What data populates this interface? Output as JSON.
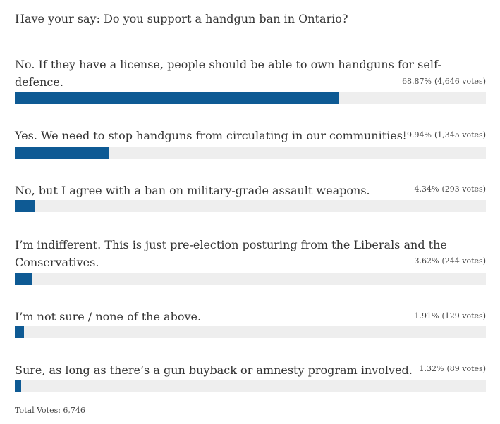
{
  "poll": {
    "question": "Have your say: Do you support a handgun ban in Ontario?",
    "bar_color": "#0e5a94",
    "track_color": "#eeeeee",
    "options": [
      {
        "text": "No. If they have a license, people should be able to own handguns for self-defence.",
        "percent_label": "68.87%",
        "votes_label": "(4,646 votes)",
        "fraction": 0.6887
      },
      {
        "text": "Yes. We need to stop handguns from circulating in our communities.",
        "percent_label": "19.94%",
        "votes_label": "(1,345 votes)",
        "fraction": 0.1994
      },
      {
        "text": "No, but I agree with a ban on military-grade assault weapons.",
        "percent_label": "4.34%",
        "votes_label": "(293 votes)",
        "fraction": 0.0434
      },
      {
        "text_line1": "I’m indifferent. This is just pre-election posturing from the Liberals and the",
        "text_line2": "Conservatives.",
        "percent_label": "3.62%",
        "votes_label": "(244 votes)",
        "fraction": 0.0362
      },
      {
        "text": "I’m not sure / none of the above.",
        "percent_label": "1.91%",
        "votes_label": "(129 votes)",
        "fraction": 0.0191
      },
      {
        "text": "Sure, as long as there’s a gun buyback or amnesty program involved.",
        "percent_label": "1.32%",
        "votes_label": "(89 votes)",
        "fraction": 0.0132
      }
    ],
    "total_votes": "Total Votes: 6,746"
  }
}
